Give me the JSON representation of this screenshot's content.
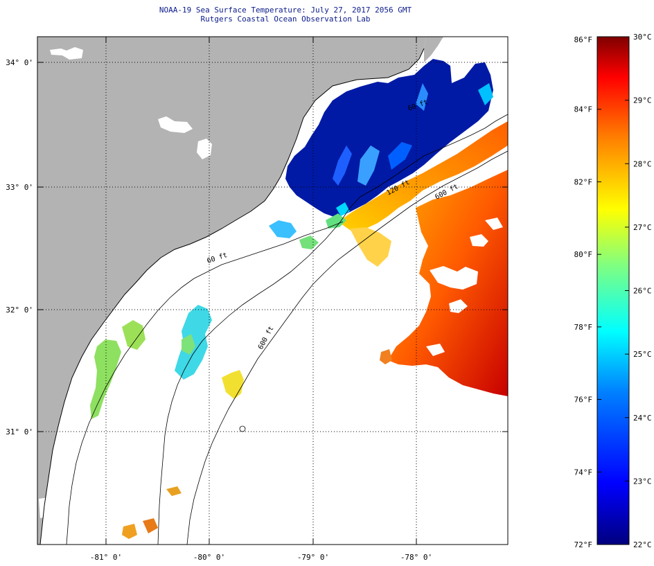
{
  "header": {
    "title_line1": "NOAA-19 Sea Surface Temperature:  July 27, 2017 2056 GMT",
    "title_line2": "Rutgers Coastal Ocean Observation Lab"
  },
  "map": {
    "lat_ticks": [
      "34° 0'",
      "33° 0'",
      "32° 0'",
      "31° 0'"
    ],
    "lon_ticks": [
      "-81° 0'",
      "-80° 0'",
      "-79° 0'",
      "-78° 0'"
    ],
    "contour_labels": [
      "120 ft",
      "600 ft",
      "60 ft",
      "60 ft",
      "600 ft"
    ],
    "colors": {
      "land": "#b3b3b3",
      "cloud": "#ffffff",
      "coastline": "#000000"
    }
  },
  "colorbar": {
    "fahrenheit_labels": [
      "86°F",
      "84°F",
      "82°F",
      "80°F",
      "78°F",
      "76°F",
      "74°F",
      "72°F"
    ],
    "celsius_labels": [
      "30°C",
      "29°C",
      "28°C",
      "27°C",
      "26°C",
      "25°C",
      "24°C",
      "23°C",
      "22°C"
    ],
    "range_f": [
      72,
      86
    ],
    "range_c": [
      22,
      30
    ],
    "scale_colors": [
      "#00007f",
      "#0000ff",
      "#0080ff",
      "#00ffff",
      "#80ff80",
      "#ffff00",
      "#ff8000",
      "#ff0000",
      "#7f0000"
    ]
  }
}
